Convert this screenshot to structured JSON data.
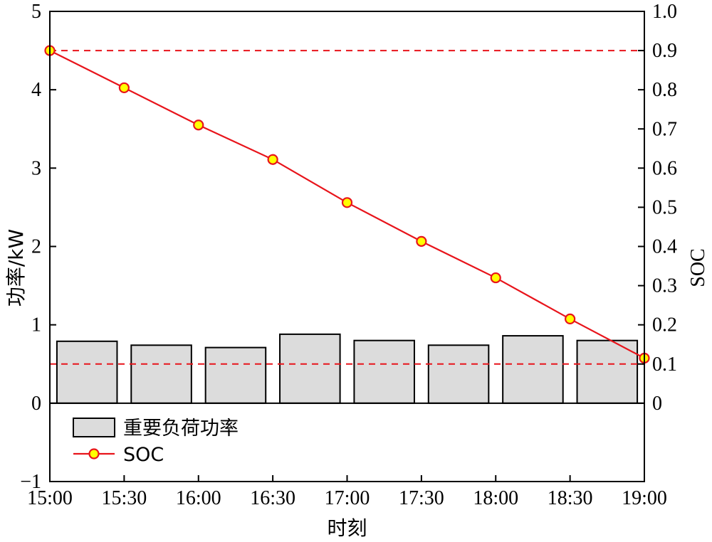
{
  "chart_data": {
    "type": "bar+line",
    "x_tick_labels": [
      "15:00",
      "15:30",
      "16:00",
      "16:30",
      "17:00",
      "17:30",
      "18:00",
      "18:30",
      "19:00"
    ],
    "xlabel": "时刻",
    "y_left": {
      "label": "功率/kW",
      "ylim": [
        -1,
        5
      ],
      "ticks": [
        -1,
        0,
        1,
        2,
        3,
        4,
        5
      ],
      "tick_labels": [
        "−1",
        "0",
        "1",
        "2",
        "3",
        "4",
        "5"
      ]
    },
    "y_right": {
      "label": "SOC",
      "ylim": [
        -0.2,
        1.0
      ],
      "ticks": [
        0,
        0.1,
        0.2,
        0.3,
        0.4,
        0.5,
        0.6,
        0.7,
        0.8,
        0.9,
        1.0
      ],
      "tick_labels": [
        "0",
        "0.1",
        "0.2",
        "0.3",
        "0.4",
        "0.5",
        "0.6",
        "0.7",
        "0.8",
        "0.9",
        "1.0"
      ]
    },
    "series": [
      {
        "name": "重要负荷功率",
        "kind": "bar",
        "axis": "left",
        "x": [
          "15:00–15:30",
          "15:30–16:00",
          "16:00–16:30",
          "16:30–17:00",
          "17:00–17:30",
          "17:30–18:00",
          "18:00–18:30",
          "18:30–19:00"
        ],
        "values": [
          0.79,
          0.74,
          0.71,
          0.88,
          0.8,
          0.74,
          0.86,
          0.8
        ],
        "color": "#dcdcdc",
        "edge_color": "#000000"
      },
      {
        "name": "SOC",
        "kind": "line",
        "axis": "right",
        "x": [
          "15:00",
          "15:30",
          "16:00",
          "16:30",
          "17:00",
          "17:30",
          "18:00",
          "18:30",
          "19:00"
        ],
        "values": [
          0.9,
          0.805,
          0.71,
          0.622,
          0.512,
          0.413,
          0.32,
          0.215,
          0.115
        ],
        "line_color": "#e8141b",
        "marker_fill": "#ffff00",
        "marker_edge": "#e8141b"
      }
    ],
    "reference_lines": [
      {
        "axis": "right",
        "value": 0.9,
        "style": "dashed",
        "color": "#e8141b"
      },
      {
        "axis": "right",
        "value": 0.1,
        "style": "dashed",
        "color": "#e8141b"
      }
    ],
    "zero_line": {
      "axis": "left",
      "value": 0
    },
    "legend": {
      "placement": "lower-left",
      "entries": [
        "重要负荷功率",
        "SOC"
      ]
    },
    "grid": false
  }
}
